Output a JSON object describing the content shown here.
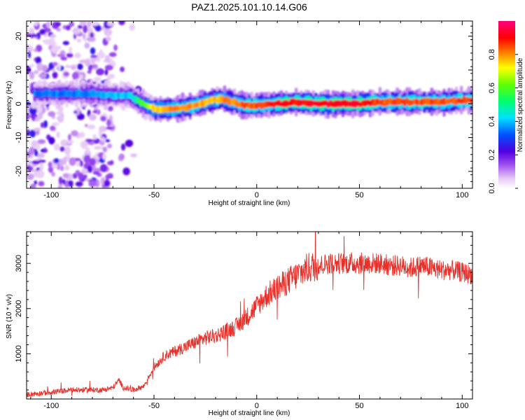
{
  "colors": {
    "snr_line": "#e8302a",
    "frame": "#000000",
    "background": "#ffffff"
  },
  "chart_data": [
    {
      "type": "heatmap",
      "title": "PAZ1.2025.101.10.14.G06",
      "xlabel": "Height of straight line (km)",
      "ylabel": "Frequency (Hz)",
      "xlim": [
        -112,
        105
      ],
      "ylim": [
        -25,
        24.5
      ],
      "xticks": [
        -100,
        -50,
        0,
        50,
        100
      ],
      "yticks": [
        -20,
        -10,
        0,
        10,
        20
      ],
      "colorbar": {
        "label": "Normalized spectral amplitude",
        "range": [
          0,
          1
        ],
        "ticks": [
          "0.0",
          "0.2",
          "0.4",
          "0.6",
          "0.8"
        ],
        "colormap": "white-purple-blue-cyan-green-yellow-red-magenta"
      },
      "ridge": {
        "x": [
          -100,
          -90,
          -80,
          -70,
          -62,
          -57,
          -50,
          -40,
          -30,
          -22,
          -17,
          -12,
          -5,
          0,
          10,
          20,
          30,
          40,
          50,
          60,
          70,
          80,
          90,
          100,
          105
        ],
        "freq": [
          3.0,
          3.0,
          3.0,
          2.5,
          2.5,
          0.5,
          -1.5,
          -1.5,
          -0.5,
          1.0,
          1.5,
          0.5,
          -0.5,
          -0.5,
          0.0,
          0.5,
          0.0,
          0.0,
          0.0,
          0.5,
          0.5,
          0.5,
          0.5,
          1.0,
          1.0
        ],
        "amplitude": [
          0.35,
          0.35,
          0.35,
          0.4,
          0.4,
          0.55,
          0.75,
          0.8,
          0.8,
          0.75,
          0.8,
          0.8,
          0.85,
          0.85,
          0.9,
          0.9,
          0.92,
          0.92,
          0.92,
          0.85,
          0.85,
          0.85,
          0.85,
          0.85,
          0.85
        ]
      },
      "noise": "scattered low-amplitude blobs for x < -55 km across all frequencies"
    },
    {
      "type": "line",
      "xlabel": "Height of straight line (km)",
      "ylabel": "SNR (10 * v/v)",
      "xlim": [
        -112,
        105
      ],
      "ylim": [
        0,
        3700
      ],
      "xticks": [
        -100,
        -50,
        0,
        50,
        100
      ],
      "yticks": [
        1000,
        2000,
        3000
      ],
      "series": [
        {
          "x": [
            -112,
            -100,
            -90,
            -80,
            -75,
            -70,
            -67,
            -65,
            -60,
            -55,
            -50,
            -45,
            -40,
            -35,
            -30,
            -25,
            -20,
            -15,
            -10,
            -5,
            0,
            5,
            10,
            15,
            20,
            25,
            30,
            35,
            40,
            45,
            50,
            55,
            60,
            65,
            70,
            75,
            80,
            85,
            90,
            95,
            100,
            105
          ],
          "values": [
            100,
            150,
            200,
            200,
            200,
            250,
            420,
            250,
            200,
            280,
            700,
            950,
            1050,
            1150,
            1250,
            1350,
            1400,
            1500,
            1600,
            1800,
            2050,
            2300,
            2450,
            2600,
            2750,
            2900,
            2950,
            3000,
            3000,
            3000,
            3000,
            3000,
            3000,
            2950,
            2950,
            2900,
            2950,
            2900,
            2850,
            2850,
            2800,
            2750
          ]
        }
      ]
    }
  ]
}
